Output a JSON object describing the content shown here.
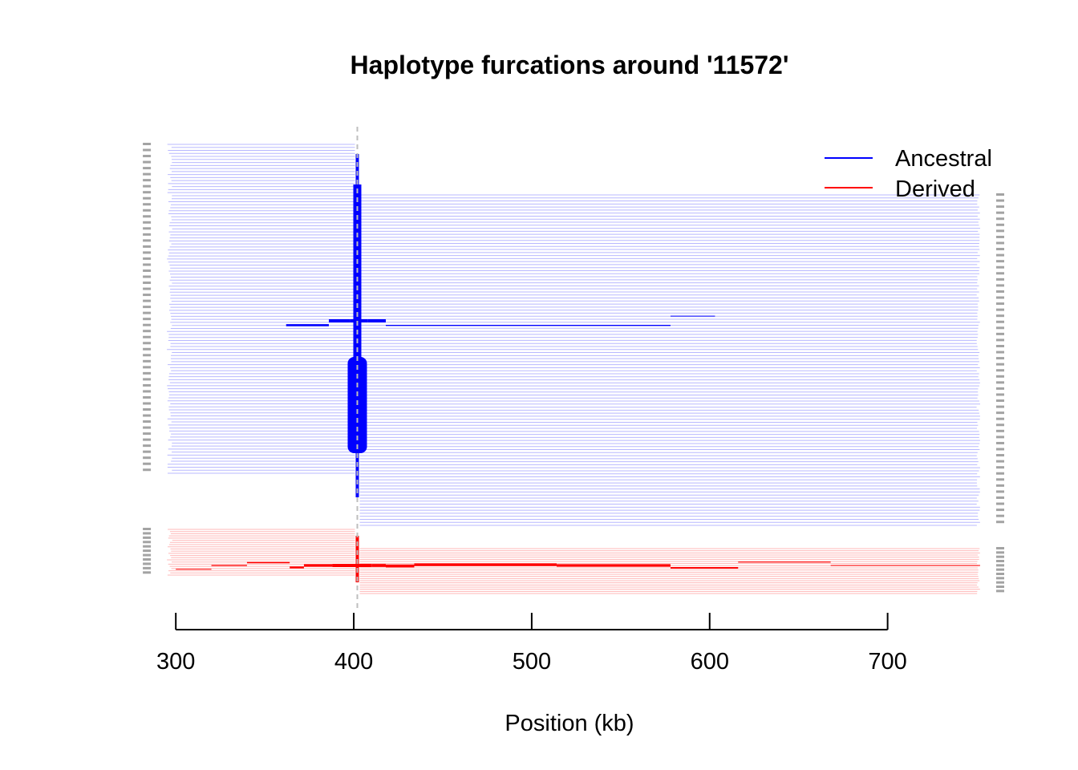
{
  "chart_data": {
    "type": "line",
    "title": "Haplotype furcations around '11572'",
    "xlabel": "Position (kb)",
    "ylabel": "",
    "xlim": [
      290,
      752
    ],
    "x_ticks": [
      300,
      400,
      500,
      600,
      700
    ],
    "x_tick_labels": [
      "300",
      "400",
      "500",
      "600",
      "700"
    ],
    "focal_marker_position": 402,
    "grid": false,
    "legend_position": "top-right",
    "colors": {
      "Ancestral": "#0000ff",
      "Derived": "#ff0000",
      "marker": "#bebebe",
      "axis": "#000000"
    },
    "series": [
      {
        "name": "Ancestral",
        "haplotype_count": 110,
        "left_extent_range_kb": [
          295,
          402
        ],
        "right_extent_range_kb": [
          402,
          752
        ],
        "trunk": [
          {
            "from": 402,
            "to": 398,
            "weight": 1
          },
          {
            "from": 398,
            "to": 386,
            "weight": 0.2
          },
          {
            "from": 386,
            "to": 362,
            "weight": 0.1
          },
          {
            "from": 402,
            "to": 408,
            "weight": 1
          },
          {
            "from": 408,
            "to": 418,
            "weight": 0.2
          },
          {
            "from": 418,
            "to": 578,
            "weight": 0.05
          },
          {
            "from": 578,
            "to": 603,
            "weight": 0.02
          }
        ]
      },
      {
        "name": "Derived",
        "haplotype_count": 22,
        "left_extent_range_kb": [
          295,
          402
        ],
        "right_extent_range_kb": [
          402,
          752
        ],
        "trunk": [
          {
            "from": 402,
            "to": 388,
            "weight": 1
          },
          {
            "from": 388,
            "to": 372,
            "weight": 0.8
          },
          {
            "from": 372,
            "to": 364,
            "weight": 0.6
          },
          {
            "from": 364,
            "to": 340,
            "weight": 0.4
          },
          {
            "from": 340,
            "to": 320,
            "weight": 0.3
          },
          {
            "from": 320,
            "to": 300,
            "weight": 0.2
          },
          {
            "from": 402,
            "to": 410,
            "weight": 1
          },
          {
            "from": 410,
            "to": 418,
            "weight": 0.95
          },
          {
            "from": 418,
            "to": 434,
            "weight": 0.9
          },
          {
            "from": 434,
            "to": 514,
            "weight": 0.85
          },
          {
            "from": 514,
            "to": 578,
            "weight": 0.8
          },
          {
            "from": 578,
            "to": 616,
            "weight": 0.5
          },
          {
            "from": 616,
            "to": 668,
            "weight": 0.3
          },
          {
            "from": 668,
            "to": 752,
            "weight": 0.15
          }
        ]
      }
    ]
  }
}
